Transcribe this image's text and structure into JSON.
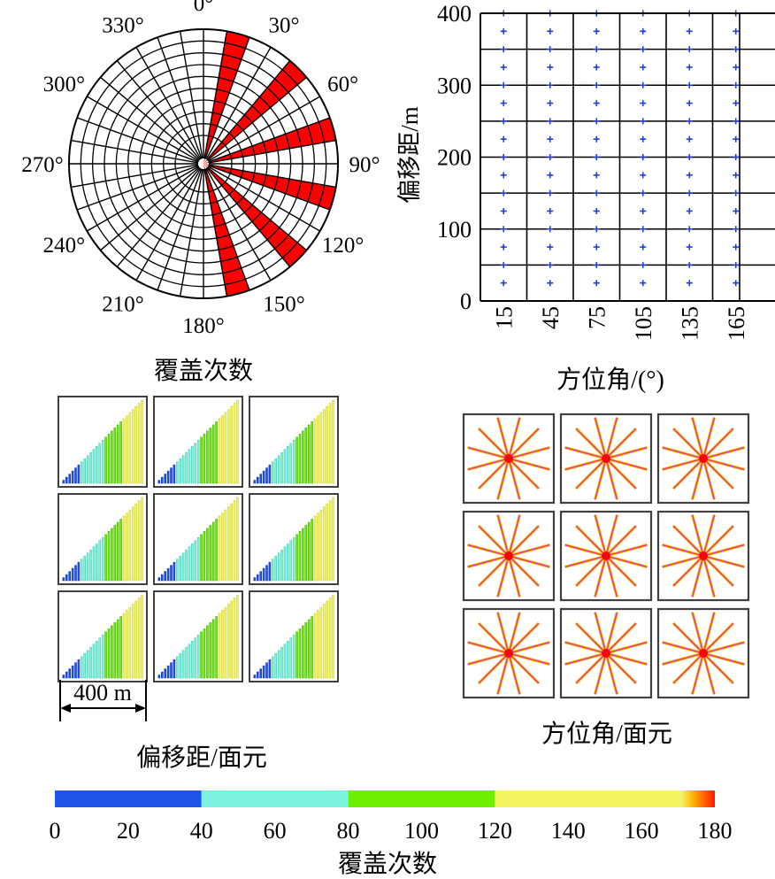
{
  "chart_data": [
    {
      "type": "polar-rose",
      "caption": "覆盖次数",
      "angle_labels": [
        "0°",
        "30°",
        "60°",
        "90°",
        "120°",
        "150°",
        "180°",
        "210°",
        "240°",
        "270°",
        "300°",
        "330°"
      ],
      "sector_width_deg": 10,
      "rings": 9,
      "highlighted_sectors_deg": [
        {
          "from": 10,
          "to": 20
        },
        {
          "from": 40,
          "to": 50
        },
        {
          "from": 70,
          "to": 80
        },
        {
          "from": 100,
          "to": 110
        },
        {
          "from": 130,
          "to": 140
        },
        {
          "from": 160,
          "to": 170
        }
      ],
      "highlight_color": "#ff0000"
    },
    {
      "type": "scatter",
      "xlabel": "方位角/(°)",
      "ylabel": "偏移距/m",
      "x_ticks": [
        "15",
        "45",
        "75",
        "105",
        "135",
        "165"
      ],
      "y_ticks": [
        "0",
        "100",
        "200",
        "300",
        "400"
      ],
      "xlim": [
        0,
        180
      ],
      "ylim": [
        0,
        400
      ],
      "x": [
        15,
        45,
        75,
        105,
        135,
        165
      ],
      "y_start": 25,
      "y_end": 400,
      "y_step": 25,
      "offset_bin_edges": [
        50,
        100,
        150,
        200,
        250,
        300,
        350
      ],
      "azimuth_bin_edges": [
        30,
        60,
        90,
        120,
        150
      ],
      "marker": "+",
      "marker_color": "#1f3fe0"
    },
    {
      "type": "bar-grid",
      "caption": "偏移距/面元",
      "scale_label": "400 m",
      "rows": 3,
      "cols": 3,
      "bars_per_cell": 27,
      "bar_height_fraction_step": 0.037
    },
    {
      "type": "star-grid",
      "caption": "方位角/面元",
      "rows": 3,
      "cols": 3,
      "ray_angles_deg": [
        15,
        45,
        75,
        105,
        135,
        165,
        195,
        225,
        255,
        285,
        315,
        345
      ],
      "ray_color": "#e8348c",
      "trace_color": "#f2c200",
      "center_color": "#ff0000"
    },
    {
      "type": "colorbar",
      "title": "覆盖次数",
      "ticks": [
        "0",
        "20",
        "40",
        "60",
        "80",
        "100",
        "120",
        "140",
        "160",
        "180"
      ],
      "range": [
        0,
        180
      ],
      "bands": [
        {
          "from": 0,
          "to": 40,
          "color": "#1f55e8"
        },
        {
          "from": 40,
          "to": 80,
          "color": "#7cf3dc"
        },
        {
          "from": 80,
          "to": 120,
          "color": "#6cf000"
        },
        {
          "from": 120,
          "to": 160,
          "color": "#f3f560"
        },
        {
          "from": 160,
          "to": 180,
          "color": "#ff3300"
        }
      ]
    }
  ]
}
